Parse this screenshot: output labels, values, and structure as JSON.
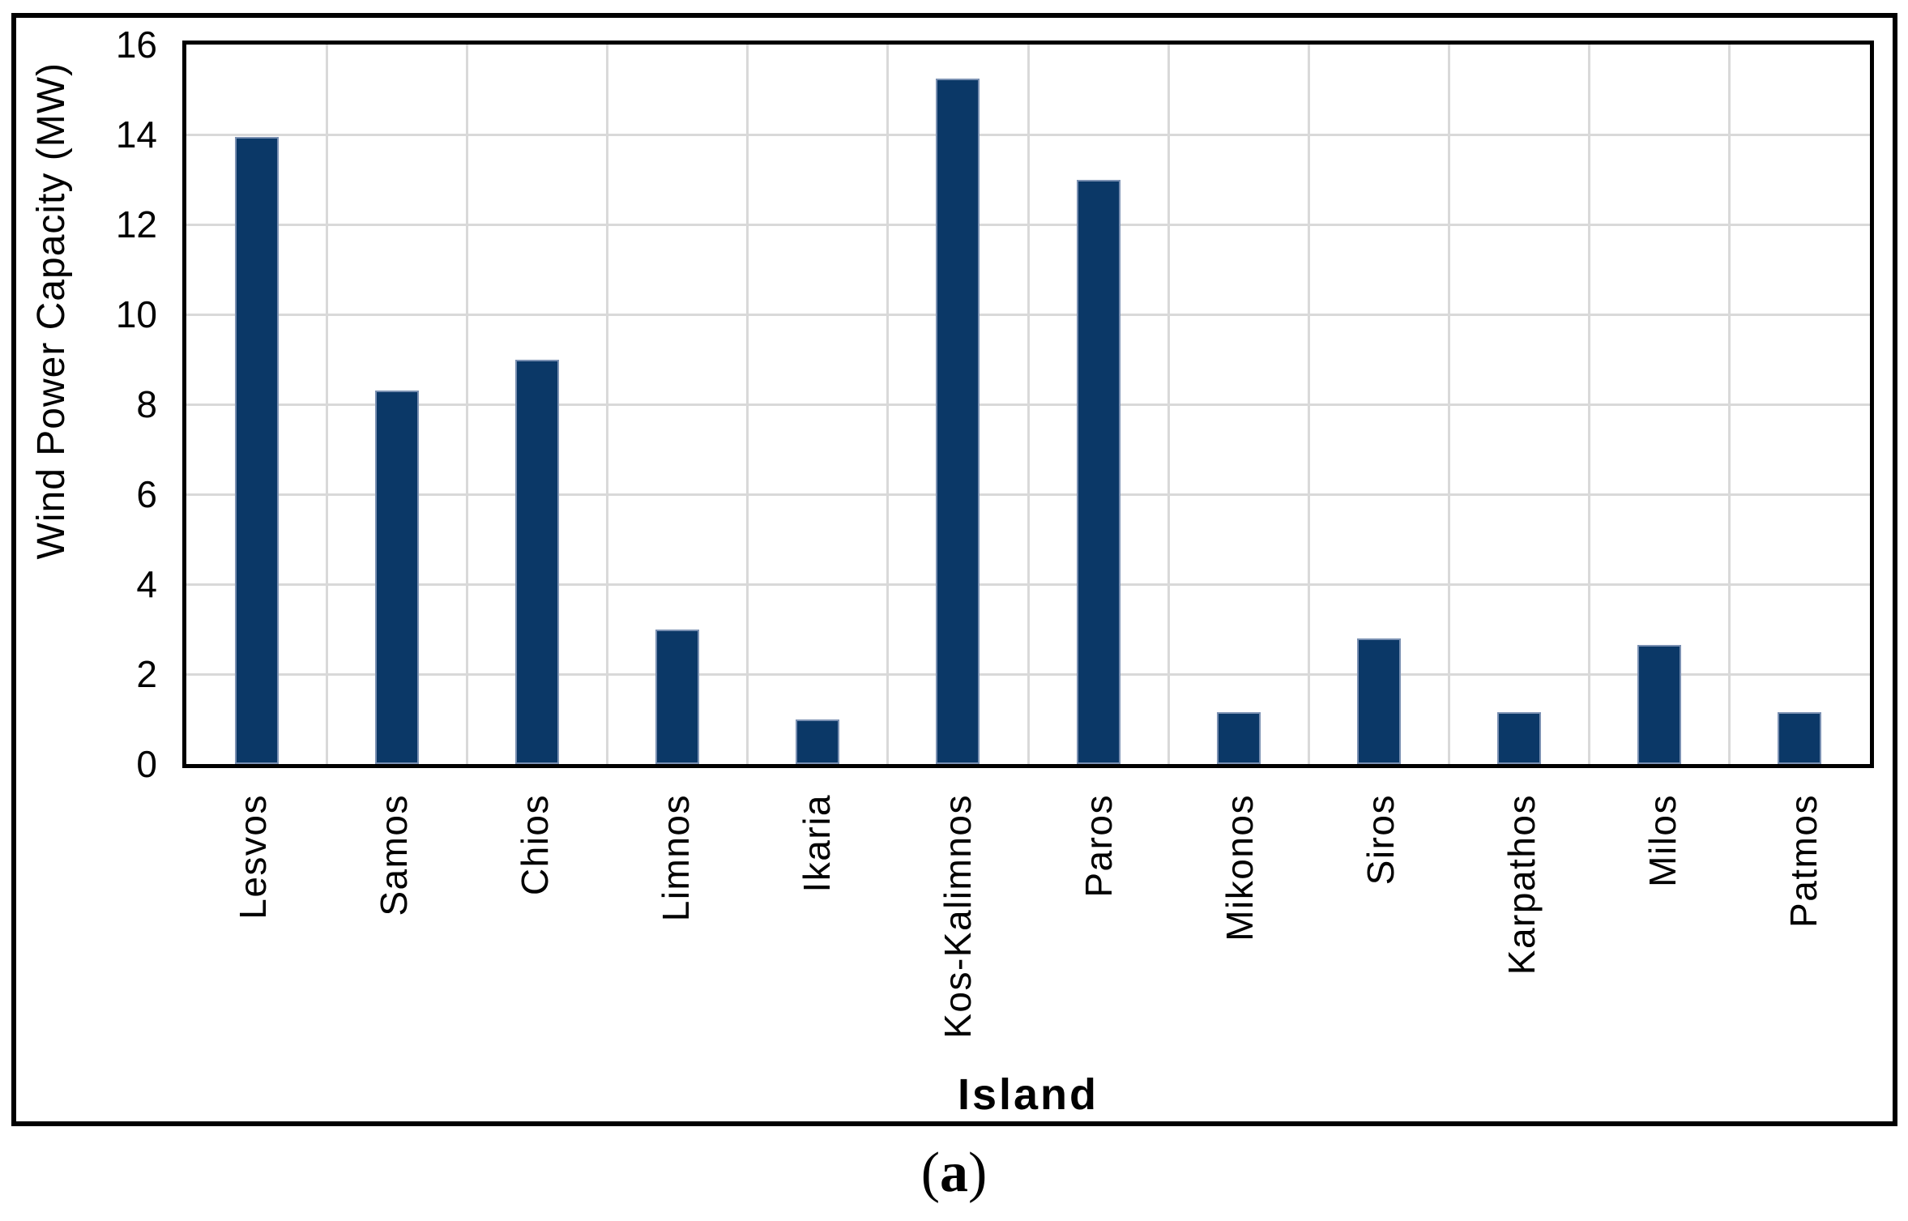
{
  "figure": {
    "caption": {
      "prefix": "(",
      "letter": "a",
      "suffix": ")"
    }
  },
  "chart_data": {
    "type": "bar",
    "title": "",
    "xlabel": "Island",
    "ylabel": "Wind Power Capacity (MW)",
    "categories": [
      "Lesvos",
      "Samos",
      "Chios",
      "Limnos",
      "Ikaria",
      "Kos-Kalimnos",
      "Paros",
      "Mikonos",
      "Siros",
      "Karpathos",
      "Milos",
      "Patmos"
    ],
    "values": [
      13.95,
      8.3,
      9.0,
      3.0,
      1.0,
      15.25,
      13.0,
      1.15,
      2.8,
      1.15,
      2.65,
      1.15
    ],
    "ylim": [
      0,
      16
    ],
    "ytick_step": 2,
    "ytick_labels": [
      "0",
      "2",
      "4",
      "6",
      "8",
      "10",
      "12",
      "14",
      "16"
    ],
    "legend": null,
    "grid": {
      "horizontal": true,
      "vertical": true,
      "color": "#d9d9d9"
    },
    "bar_color": "#0b3867",
    "bar_border_color": "#7a90b2",
    "axis_color": "#000000"
  }
}
